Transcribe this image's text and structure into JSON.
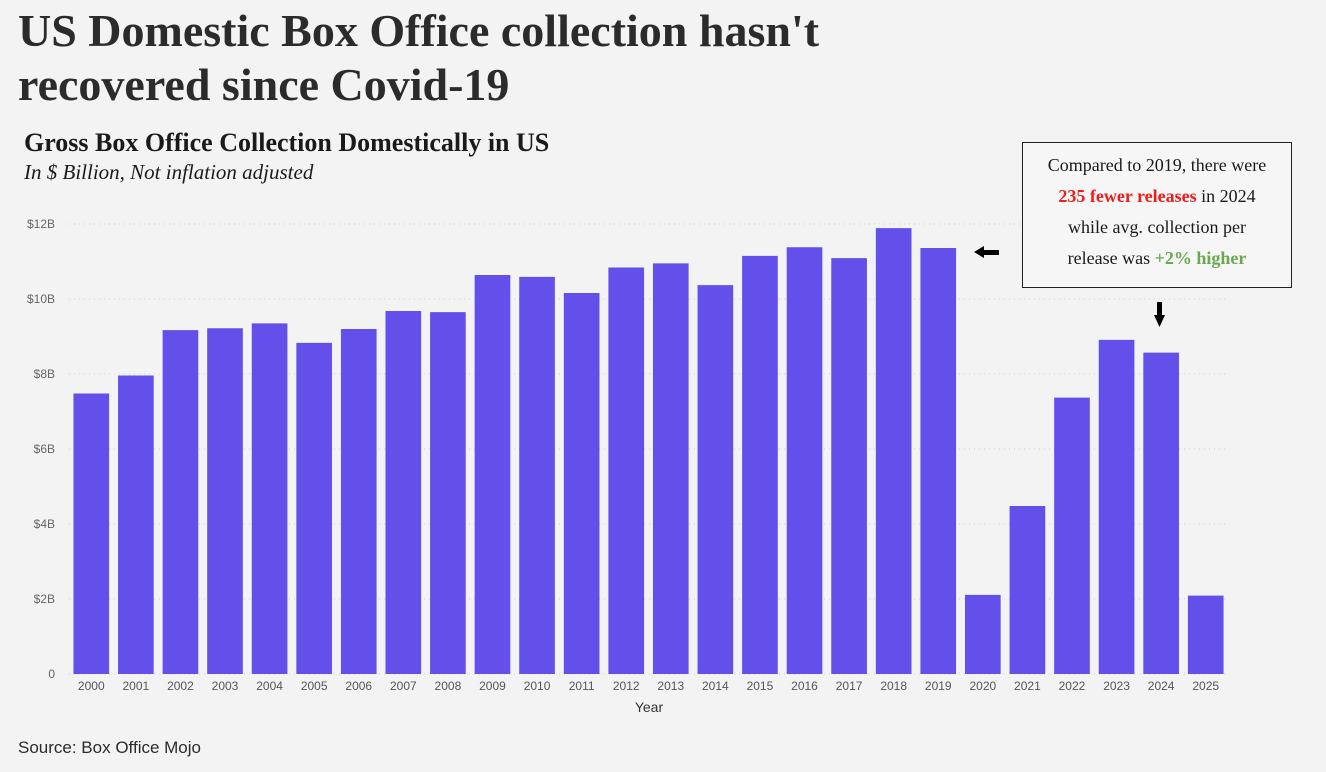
{
  "headline": "US Domestic Box Office collection hasn't recovered since Covid-19",
  "annotation": {
    "line1": "Compared to 2019, there were",
    "line2_highlight": "235 fewer releases",
    "line2_rest": " in 2024",
    "line3": "while avg. collection per",
    "line4_pre": "release was ",
    "line4_highlight": "+2% higher"
  },
  "source": "Source: Box Office Mojo",
  "colors": {
    "bar": "#6350eb",
    "negative": "#ee1c1c",
    "positive": "#6aa84f"
  },
  "chart_data": {
    "type": "bar",
    "title": "Gross Box Office Collection Domestically in US",
    "subtitle": "In $ Billion, Not inflation adjusted",
    "xlabel": "Year",
    "ylabel": "",
    "ylim": [
      0,
      12
    ],
    "yticks": [
      0,
      2,
      4,
      6,
      8,
      10,
      12
    ],
    "ytick_labels": [
      "0",
      "$2B",
      "$4B",
      "$6B",
      "$8B",
      "$10B",
      "$12B"
    ],
    "grid": true,
    "categories": [
      "2000",
      "2001",
      "2002",
      "2003",
      "2004",
      "2005",
      "2006",
      "2007",
      "2008",
      "2009",
      "2010",
      "2011",
      "2012",
      "2013",
      "2014",
      "2015",
      "2016",
      "2017",
      "2018",
      "2019",
      "2020",
      "2021",
      "2022",
      "2023",
      "2024",
      "2025"
    ],
    "values": [
      7.48,
      7.96,
      9.17,
      9.22,
      9.35,
      8.83,
      9.2,
      9.68,
      9.65,
      10.64,
      10.59,
      10.16,
      10.84,
      10.95,
      10.37,
      11.15,
      11.38,
      11.09,
      11.89,
      11.36,
      2.11,
      4.48,
      7.37,
      8.91,
      8.57,
      2.09
    ]
  }
}
